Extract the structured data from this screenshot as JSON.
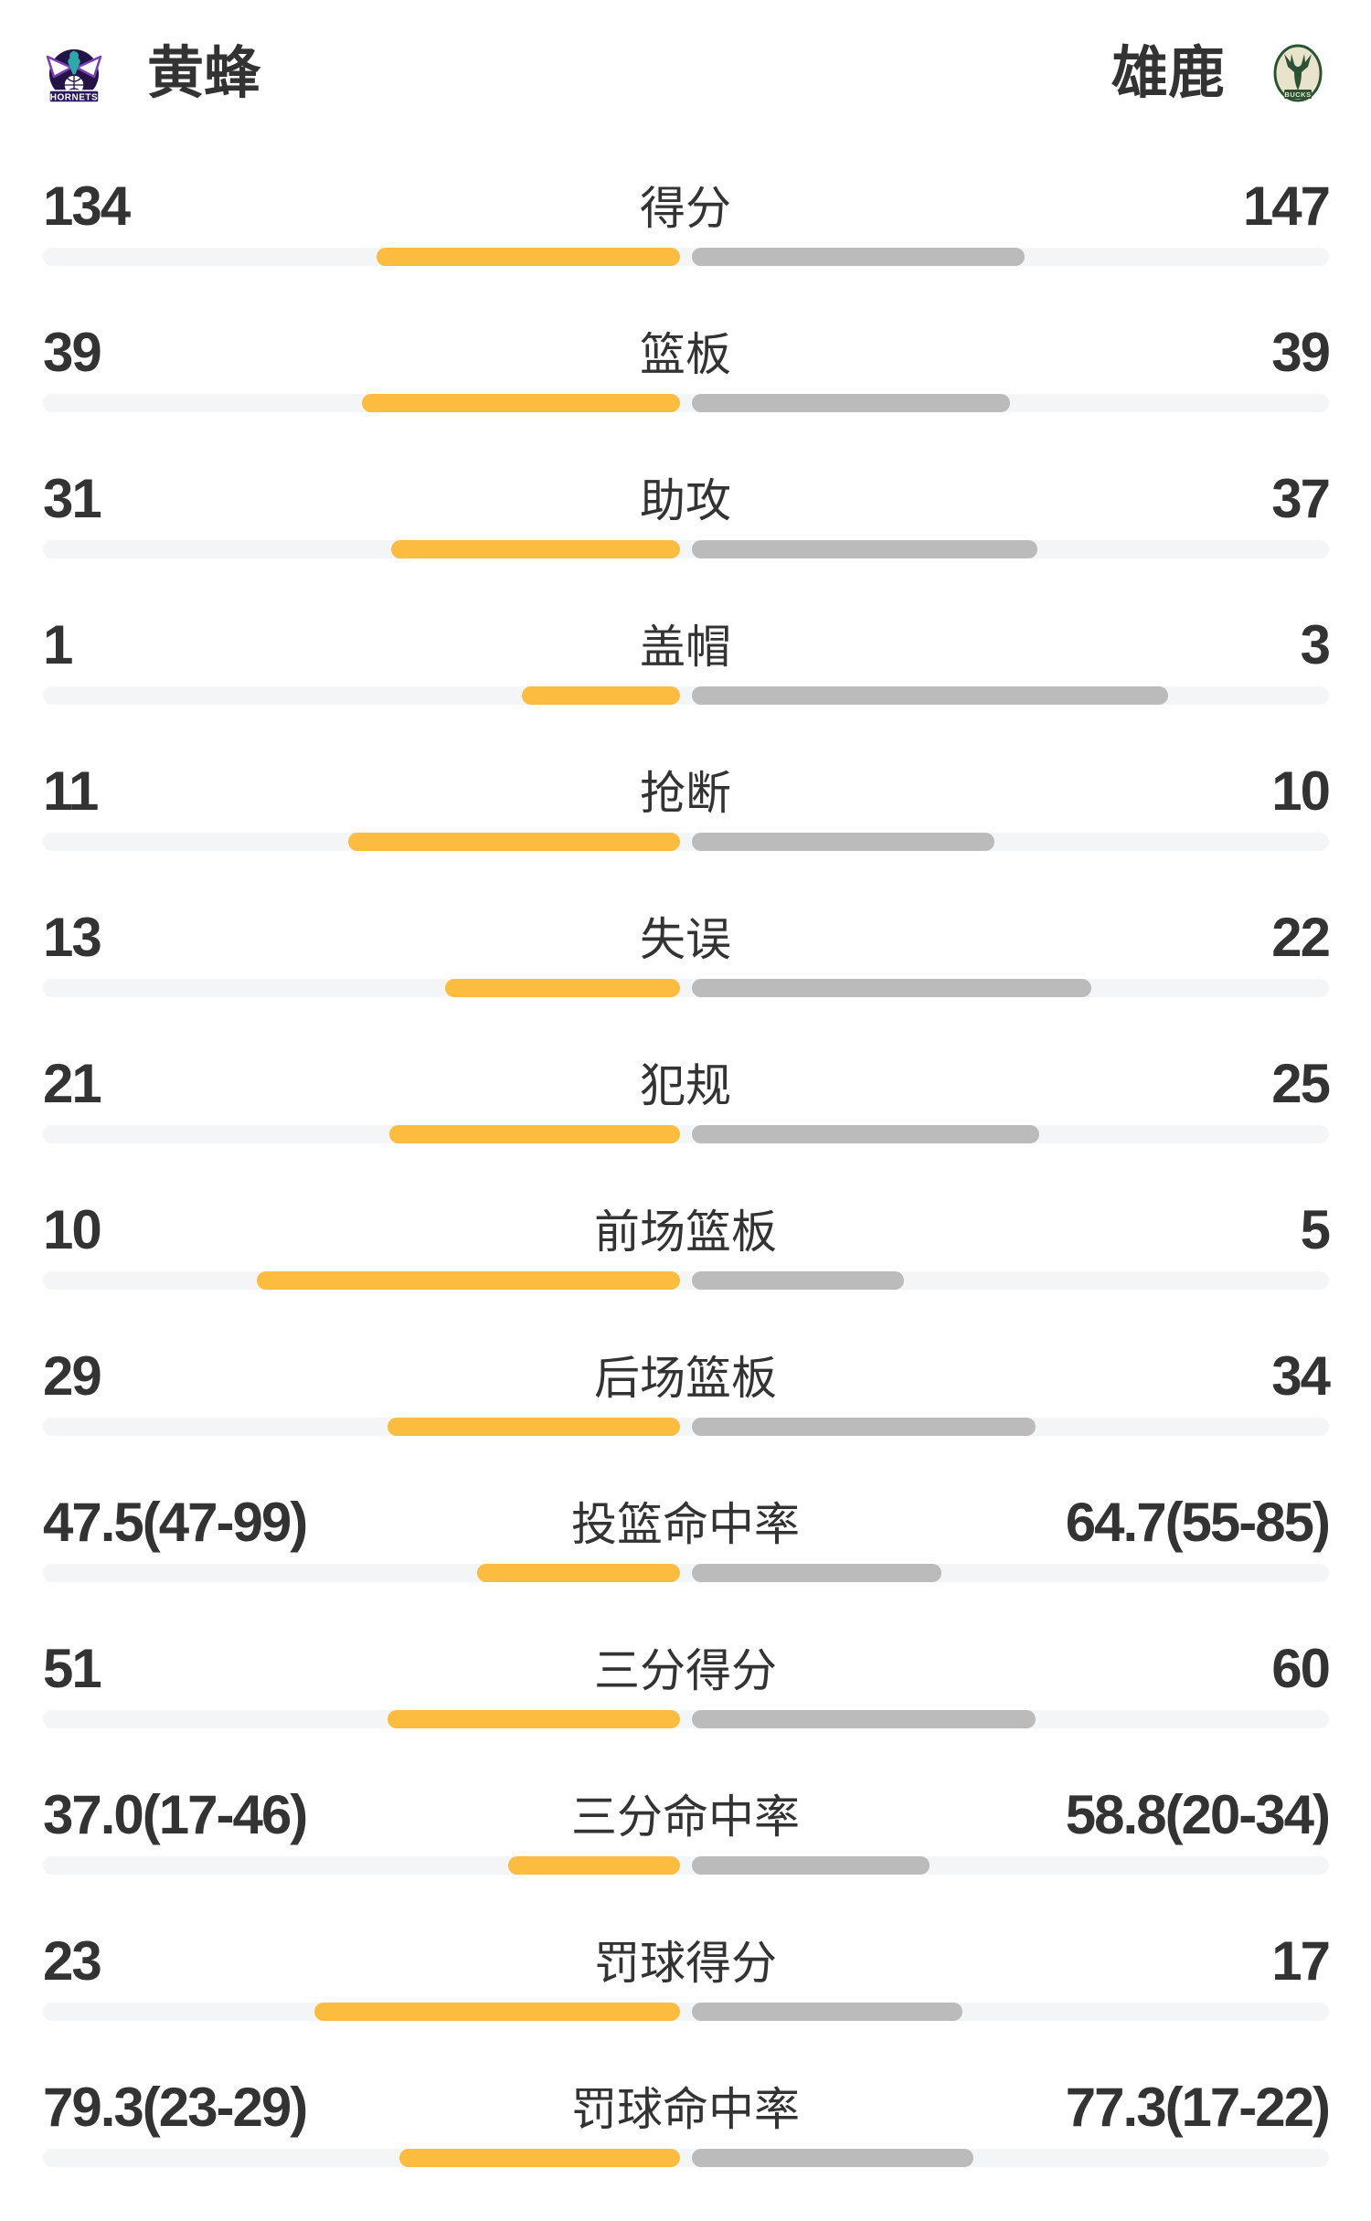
{
  "header": {
    "left_team": {
      "name": "黄蜂",
      "logo_text": "HORNETS"
    },
    "right_team": {
      "name": "雄鹿",
      "logo_text": "BUCKS"
    }
  },
  "colors": {
    "left_bar": "#FBBC40",
    "right_bar": "#BBBBBB",
    "track": "#F4F5F7",
    "text": "#333333",
    "background": "#FFFFFF",
    "hornets_purple": "#241345",
    "hornets_teal": "#2FA8A8",
    "bucks_green": "#2C5234",
    "bucks_cream": "#EAE3CC"
  },
  "rows": [
    {
      "label": "得分",
      "left": "134",
      "right": "147",
      "left_bar": 332,
      "right_bar": 364
    },
    {
      "label": "篮板",
      "left": "39",
      "right": "39",
      "left_bar": 348,
      "right_bar": 348
    },
    {
      "label": "助攻",
      "left": "31",
      "right": "37",
      "left_bar": 316,
      "right_bar": 378
    },
    {
      "label": "盖帽",
      "left": "1",
      "right": "3",
      "left_bar": 173,
      "right_bar": 521
    },
    {
      "label": "抢断",
      "left": "11",
      "right": "10",
      "left_bar": 363,
      "right_bar": 331
    },
    {
      "label": "失误",
      "left": "13",
      "right": "22",
      "left_bar": 257,
      "right_bar": 437
    },
    {
      "label": "犯规",
      "left": "21",
      "right": "25",
      "left_bar": 318,
      "right_bar": 380
    },
    {
      "label": "前场篮板",
      "left": "10",
      "right": "5",
      "left_bar": 463,
      "right_bar": 232
    },
    {
      "label": "后场篮板",
      "left": "29",
      "right": "34",
      "left_bar": 320,
      "right_bar": 376
    },
    {
      "label": "投篮命中率",
      "left": "47.5(47-99)",
      "right": "64.7(55-85)",
      "left_bar": 222,
      "right_bar": 273
    },
    {
      "label": "三分得分",
      "left": "51",
      "right": "60",
      "left_bar": 320,
      "right_bar": 376
    },
    {
      "label": "三分命中率",
      "left": "37.0(17-46)",
      "right": "58.8(20-34)",
      "left_bar": 188,
      "right_bar": 260
    },
    {
      "label": "罚球得分",
      "left": "23",
      "right": "17",
      "left_bar": 400,
      "right_bar": 296
    },
    {
      "label": "罚球命中率",
      "left": "79.3(23-29)",
      "right": "77.3(17-22)",
      "left_bar": 307,
      "right_bar": 308
    }
  ],
  "chart_data": {
    "type": "bar",
    "orientation": "horizontal-paired",
    "legend_position": "top",
    "categories": [
      "得分",
      "篮板",
      "助攻",
      "盖帽",
      "抢断",
      "失误",
      "犯规",
      "前场篮板",
      "后场篮板",
      "投篮命中率",
      "三分得分",
      "三分命中率",
      "罚球得分",
      "罚球命中率"
    ],
    "series": [
      {
        "name": "黄蜂",
        "color": "#FBBC40",
        "values": [
          134,
          39,
          31,
          1,
          11,
          13,
          21,
          10,
          29,
          47.5,
          51,
          37.0,
          23,
          79.3
        ],
        "display": [
          "134",
          "39",
          "31",
          "1",
          "11",
          "13",
          "21",
          "10",
          "29",
          "47.5(47-99)",
          "51",
          "37.0(17-46)",
          "23",
          "79.3(23-29)"
        ]
      },
      {
        "name": "雄鹿",
        "color": "#BBBBBB",
        "values": [
          147,
          39,
          37,
          3,
          10,
          22,
          25,
          5,
          34,
          64.7,
          60,
          58.8,
          17,
          77.3
        ],
        "display": [
          "147",
          "39",
          "37",
          "3",
          "10",
          "22",
          "25",
          "5",
          "34",
          "64.7(55-85)",
          "60",
          "58.8(20-34)",
          "17",
          "77.3(17-22)"
        ]
      }
    ]
  }
}
